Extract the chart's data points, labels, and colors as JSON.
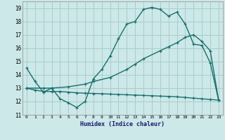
{
  "xlabel": "Humidex (Indice chaleur)",
  "bg_color": "#cce8e8",
  "grid_color": "#aacccc",
  "line_color": "#1a6e6e",
  "xlim": [
    -0.5,
    23.5
  ],
  "ylim": [
    11,
    19.5
  ],
  "xticks": [
    0,
    1,
    2,
    3,
    4,
    5,
    6,
    7,
    8,
    9,
    10,
    11,
    12,
    13,
    14,
    15,
    16,
    17,
    18,
    19,
    20,
    21,
    22,
    23
  ],
  "yticks": [
    11,
    12,
    13,
    14,
    15,
    16,
    17,
    18,
    19
  ],
  "line1_x": [
    0,
    1,
    2,
    3,
    4,
    5,
    6,
    7,
    8,
    9,
    10,
    11,
    12,
    13,
    14,
    15,
    16,
    17,
    18,
    19,
    20,
    21,
    22,
    23
  ],
  "line1_y": [
    14.5,
    13.5,
    12.7,
    13.0,
    12.2,
    11.9,
    11.55,
    12.0,
    13.7,
    14.4,
    15.4,
    16.7,
    17.8,
    18.0,
    18.9,
    19.05,
    18.9,
    18.4,
    18.7,
    17.8,
    16.3,
    16.2,
    14.9,
    12.1
  ],
  "line2_x": [
    0,
    2,
    3,
    5,
    7,
    8,
    10,
    12,
    13,
    14,
    16,
    17,
    18,
    19,
    20,
    21,
    22,
    23
  ],
  "line2_y": [
    13.0,
    13.0,
    13.0,
    13.1,
    13.3,
    13.5,
    13.8,
    14.4,
    14.8,
    15.2,
    15.8,
    16.1,
    16.4,
    16.8,
    17.0,
    16.5,
    15.8,
    12.1
  ],
  "line3_x": [
    0,
    1,
    2,
    3,
    4,
    5,
    6,
    7,
    8,
    9,
    10,
    11,
    12,
    13,
    14,
    15,
    16,
    17,
    18,
    19,
    20,
    21,
    22,
    23
  ],
  "line3_y": [
    13.0,
    12.85,
    12.75,
    12.75,
    12.75,
    12.7,
    12.65,
    12.62,
    12.6,
    12.58,
    12.55,
    12.53,
    12.5,
    12.48,
    12.45,
    12.43,
    12.4,
    12.38,
    12.35,
    12.3,
    12.25,
    12.2,
    12.15,
    12.1
  ]
}
